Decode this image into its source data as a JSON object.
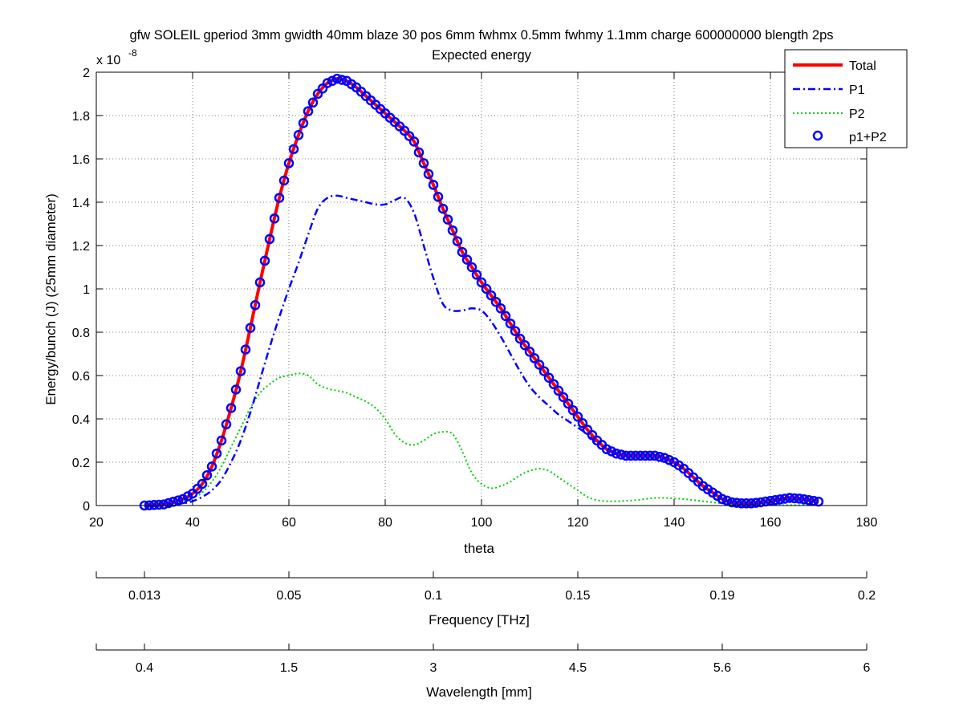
{
  "figure": {
    "title_line1": "gfw SOLEIL gperiod 3mm gwidth 40mm blaze 30 pos 6mm fwhmx 0.5mm fwhmy 1.1mm charge 600000000 blength 2ps",
    "title_line2": "Expected energy",
    "exponent_label": "x 10",
    "exponent_power": "-8",
    "background": "#ffffff"
  },
  "chart_data": {
    "type": "line",
    "title": "Expected energy",
    "xlabel": "theta",
    "ylabel": "Energy/bunch (J) (25mm diameter)",
    "y_scale_factor": "x 10^-8",
    "xlim": [
      20,
      180
    ],
    "ylim": [
      0,
      2
    ],
    "grid": true,
    "legend_position": "top-right",
    "x_ticks": [
      "20",
      "40",
      "60",
      "80",
      "100",
      "120",
      "140",
      "160",
      "180"
    ],
    "y_ticks": [
      "0",
      "0.2",
      "0.4",
      "0.6",
      "0.8",
      "1",
      "1.2",
      "1.4",
      "1.6",
      "1.8",
      "2"
    ],
    "secondary_axes": [
      {
        "label": "Frequency [THz]",
        "tick_labels": [
          "0.013",
          "0.05",
          "0.1",
          "0.15",
          "0.19",
          "0.2"
        ]
      },
      {
        "label": "Wavelength [mm]",
        "tick_labels": [
          "0.4",
          "1.5",
          "3",
          "4.5",
          "5.6",
          "6"
        ]
      }
    ],
    "x": [
      30,
      34,
      38,
      40,
      42,
      44,
      46,
      48,
      50,
      52,
      54,
      56,
      58,
      60,
      62,
      64,
      66,
      68,
      70,
      72,
      74,
      76,
      78,
      80,
      82,
      84,
      86,
      88,
      90,
      92,
      94,
      96,
      98,
      100,
      102,
      104,
      106,
      108,
      110,
      112,
      114,
      116,
      118,
      120,
      122,
      124,
      126,
      128,
      130,
      132,
      134,
      136,
      138,
      140,
      142,
      144,
      146,
      148,
      150,
      152,
      154,
      156,
      158,
      160,
      162,
      164,
      166,
      168,
      170
    ],
    "series": [
      {
        "name": "Total",
        "color": "#ff0000",
        "style": "solid-thick",
        "values": [
          0.0,
          0.005,
          0.03,
          0.055,
          0.1,
          0.18,
          0.3,
          0.45,
          0.62,
          0.82,
          1.03,
          1.23,
          1.42,
          1.58,
          1.71,
          1.82,
          1.9,
          1.95,
          1.97,
          1.96,
          1.93,
          1.89,
          1.85,
          1.81,
          1.77,
          1.73,
          1.68,
          1.58,
          1.48,
          1.37,
          1.27,
          1.17,
          1.1,
          1.03,
          0.97,
          0.91,
          0.84,
          0.77,
          0.71,
          0.65,
          0.59,
          0.53,
          0.47,
          0.41,
          0.35,
          0.3,
          0.26,
          0.24,
          0.23,
          0.23,
          0.23,
          0.23,
          0.22,
          0.2,
          0.17,
          0.13,
          0.09,
          0.06,
          0.03,
          0.015,
          0.01,
          0.01,
          0.015,
          0.022,
          0.028,
          0.035,
          0.032,
          0.025,
          0.018
        ]
      },
      {
        "name": "P1",
        "color": "#0000ff",
        "style": "dash-dot",
        "values": [
          0.0,
          0.003,
          0.01,
          0.02,
          0.04,
          0.07,
          0.12,
          0.2,
          0.3,
          0.43,
          0.58,
          0.73,
          0.87,
          1.0,
          1.12,
          1.25,
          1.37,
          1.42,
          1.43,
          1.42,
          1.41,
          1.4,
          1.39,
          1.39,
          1.41,
          1.42,
          1.35,
          1.2,
          1.05,
          0.93,
          0.9,
          0.9,
          0.91,
          0.9,
          0.85,
          0.78,
          0.7,
          0.62,
          0.55,
          0.5,
          0.46,
          0.42,
          0.39,
          0.36,
          0.33,
          0.29,
          0.26,
          0.24,
          0.23,
          0.23,
          0.23,
          0.23,
          0.22,
          0.2,
          0.17,
          0.13,
          0.09,
          0.06,
          0.03,
          0.015,
          0.01,
          0.01,
          0.015,
          0.022,
          0.028,
          0.035,
          0.032,
          0.025,
          0.018
        ]
      },
      {
        "name": "P2",
        "color": "#00cc00",
        "style": "dotted",
        "values": [
          0.0,
          0.002,
          0.02,
          0.035,
          0.06,
          0.11,
          0.18,
          0.27,
          0.36,
          0.45,
          0.52,
          0.56,
          0.59,
          0.6,
          0.61,
          0.6,
          0.56,
          0.54,
          0.53,
          0.52,
          0.5,
          0.48,
          0.45,
          0.4,
          0.33,
          0.29,
          0.28,
          0.3,
          0.33,
          0.34,
          0.33,
          0.25,
          0.15,
          0.1,
          0.08,
          0.09,
          0.11,
          0.14,
          0.16,
          0.17,
          0.16,
          0.13,
          0.1,
          0.07,
          0.04,
          0.025,
          0.02,
          0.02,
          0.022,
          0.025,
          0.03,
          0.035,
          0.035,
          0.033,
          0.03,
          0.025,
          0.02,
          0.015,
          0.01,
          0.006,
          0.003,
          0.002,
          0.002,
          0.002,
          0.002,
          0.002,
          0.002,
          0.002,
          0.002
        ]
      },
      {
        "name": "p1+P2",
        "color": "#0000ff",
        "style": "circle-markers",
        "values": [
          0.0,
          0.005,
          0.03,
          0.055,
          0.1,
          0.18,
          0.3,
          0.45,
          0.62,
          0.82,
          1.03,
          1.23,
          1.42,
          1.58,
          1.71,
          1.82,
          1.9,
          1.95,
          1.97,
          1.96,
          1.93,
          1.89,
          1.85,
          1.81,
          1.77,
          1.73,
          1.68,
          1.58,
          1.48,
          1.37,
          1.27,
          1.17,
          1.1,
          1.03,
          0.97,
          0.91,
          0.84,
          0.77,
          0.71,
          0.65,
          0.59,
          0.53,
          0.47,
          0.41,
          0.35,
          0.3,
          0.26,
          0.24,
          0.23,
          0.23,
          0.23,
          0.23,
          0.22,
          0.2,
          0.17,
          0.13,
          0.09,
          0.06,
          0.03,
          0.015,
          0.01,
          0.01,
          0.015,
          0.022,
          0.028,
          0.035,
          0.032,
          0.025,
          0.018
        ]
      }
    ]
  }
}
